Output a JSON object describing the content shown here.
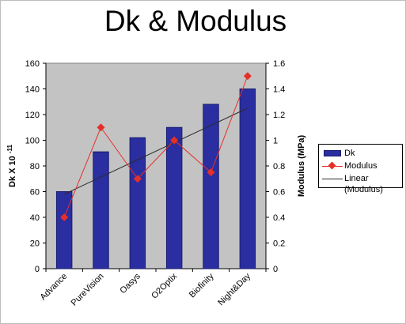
{
  "chart_data": {
    "type": "bar",
    "title": "Dk & Modulus",
    "categories": [
      "Advance",
      "PureVision",
      "Oasys",
      "O2Optix",
      "Biofinity",
      "Night&Day"
    ],
    "series": [
      {
        "name": "Dk",
        "kind": "bar",
        "axis": "left",
        "values": [
          60,
          91,
          102,
          110,
          128,
          140
        ]
      },
      {
        "name": "Modulus",
        "kind": "line",
        "axis": "right",
        "values": [
          0.4,
          1.1,
          0.7,
          1.0,
          0.75,
          1.5
        ]
      }
    ],
    "trendline": {
      "name": "Linear (Modulus)",
      "start": 0.58,
      "end": 1.25
    },
    "ylabel_left": "Dk X 10",
    "ylabel_left_exp": "-11",
    "ylabel_right": "Modulus (MPa)",
    "ylim_left": [
      0,
      160
    ],
    "yticks_left": [
      "0",
      "20",
      "40",
      "60",
      "80",
      "100",
      "120",
      "140",
      "160"
    ],
    "ylim_right": [
      0,
      1.6
    ],
    "yticks_right": [
      "0",
      "0.2",
      "0.4",
      "0.6",
      "0.8",
      "1",
      "1.2",
      "1.4",
      "1.6"
    ],
    "grid": false,
    "legend_position": "right",
    "colors": {
      "bar": "#2a2ea0",
      "bar_edge": "#1a1d6e",
      "line": "#e4302a",
      "trend": "#2b2b2b",
      "plot_bg": "#c3c3c3"
    }
  }
}
